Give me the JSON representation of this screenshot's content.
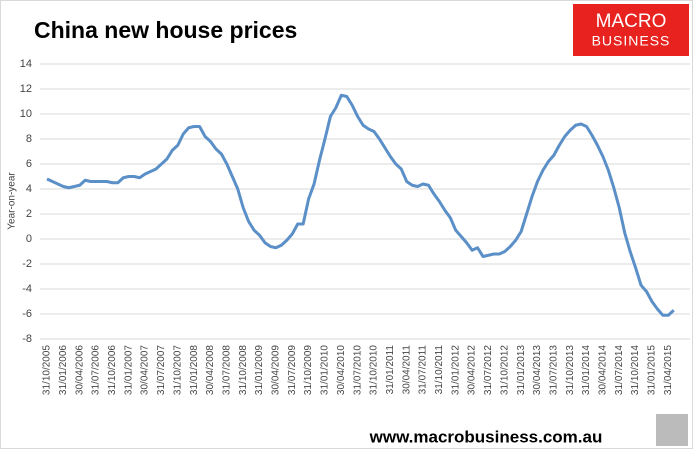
{
  "chart_data": {
    "type": "line",
    "title": "China new house prices",
    "y_label": "Year-on-year",
    "logo_text": [
      "MACRO",
      "BUSINESS"
    ],
    "footer": "www.macrobusiness.com.au",
    "categories": [
      "31/10/2005",
      null,
      null,
      "31/01/2006",
      null,
      null,
      "30/04/2006",
      null,
      null,
      "31/07/2006",
      null,
      null,
      "31/10/2006",
      null,
      null,
      "31/01/2007",
      null,
      null,
      "30/04/2007",
      null,
      null,
      "31/07/2007",
      null,
      null,
      "31/10/2007",
      null,
      null,
      "31/01/2008",
      null,
      null,
      "30/04/2008",
      null,
      null,
      "31/07/2008",
      null,
      null,
      "31/10/2008",
      null,
      null,
      "31/01/2009",
      null,
      null,
      "30/04/2009",
      null,
      null,
      "31/07/2009",
      null,
      null,
      "31/10/2009",
      null,
      null,
      "31/01/2010",
      null,
      null,
      "30/04/2010",
      null,
      null,
      "31/07/2010",
      null,
      null,
      "31/10/2010",
      null,
      null,
      "31/01/2011",
      null,
      null,
      "30/04/2011",
      null,
      null,
      "31/07/2011",
      null,
      null,
      "31/10/2011",
      null,
      null,
      "31/01/2012",
      null,
      null,
      "30/04/2012",
      null,
      null,
      "31/07/2012",
      null,
      null,
      "31/10/2012",
      null,
      null,
      "31/01/2013",
      null,
      null,
      "30/04/2013",
      null,
      null,
      "31/07/2013",
      null,
      null,
      "31/10/2013",
      null,
      null,
      "31/01/2014",
      null,
      null,
      "30/04/2014",
      null,
      null,
      "31/07/2014",
      null,
      null,
      "31/10/2014",
      null,
      null,
      "31/01/2015",
      null,
      null,
      "31/04/2015",
      null
    ],
    "series": [
      {
        "name": "China new house prices",
        "color": "#5b8fc7",
        "values": [
          4.8,
          4.6,
          4.4,
          4.2,
          4.1,
          4.2,
          4.3,
          4.7,
          4.6,
          4.6,
          4.6,
          4.6,
          4.5,
          4.5,
          4.9,
          5.0,
          5.0,
          4.9,
          5.2,
          5.4,
          5.6,
          6.0,
          6.4,
          7.1,
          7.5,
          8.4,
          8.9,
          9.0,
          9.0,
          8.2,
          7.8,
          7.2,
          6.8,
          6.0,
          5.0,
          4.0,
          2.5,
          1.4,
          0.7,
          0.3,
          -0.3,
          -0.6,
          -0.7,
          -0.5,
          -0.1,
          0.4,
          1.2,
          1.2,
          3.2,
          4.4,
          6.3,
          8.0,
          9.8,
          10.5,
          11.5,
          11.4,
          10.7,
          9.8,
          9.1,
          8.8,
          8.6,
          8.0,
          7.3,
          6.6,
          6.0,
          5.6,
          4.6,
          4.3,
          4.2,
          4.4,
          4.3,
          3.6,
          3.0,
          2.3,
          1.7,
          0.7,
          0.2,
          -0.3,
          -0.9,
          -0.7,
          -1.4,
          -1.3,
          -1.2,
          -1.2,
          -1.0,
          -0.6,
          -0.1,
          0.6,
          2.0,
          3.4,
          4.6,
          5.5,
          6.2,
          6.7,
          7.5,
          8.2,
          8.7,
          9.1,
          9.2,
          9.0,
          8.3,
          7.5,
          6.6,
          5.5,
          4.1,
          2.5,
          0.5,
          -1.0,
          -2.3,
          -3.7,
          -4.2,
          -5.0,
          -5.6,
          -6.1,
          -6.1,
          -5.7
        ]
      }
    ],
    "ylim": [
      -8,
      14
    ],
    "yticks": [
      -8,
      -6,
      -4,
      -2,
      0,
      2,
      4,
      6,
      8,
      10,
      12,
      14
    ],
    "grid": true
  }
}
